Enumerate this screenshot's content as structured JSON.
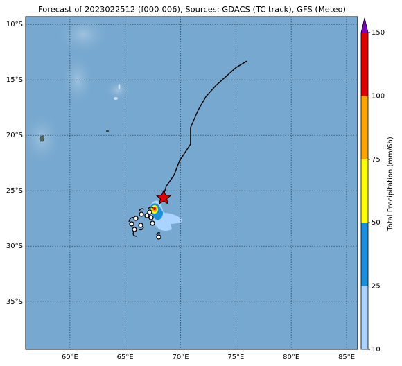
{
  "chart_data": {
    "type": "map",
    "title": "Forecast of 2023022512 (f000-006), Sources: GDACS (TC track), GFS (Meteo)",
    "xlim": [
      56,
      86
    ],
    "ylim": [
      -39.3,
      -9.3
    ],
    "xticks": [
      {
        "value": 60,
        "label": "60°E"
      },
      {
        "value": 65,
        "label": "65°E"
      },
      {
        "value": 70,
        "label": "70°E"
      },
      {
        "value": 75,
        "label": "75°E"
      },
      {
        "value": 80,
        "label": "80°E"
      },
      {
        "value": 85,
        "label": "85°E"
      }
    ],
    "yticks": [
      {
        "value": -10,
        "label": "10°S"
      },
      {
        "value": -15,
        "label": "15°S"
      },
      {
        "value": -20,
        "label": "20°S"
      },
      {
        "value": -25,
        "label": "25°S"
      },
      {
        "value": -30,
        "label": "30°S"
      },
      {
        "value": -35,
        "label": "35°S"
      }
    ],
    "grid": true,
    "track": {
      "color": "#000000",
      "x": [
        76.0,
        75.0,
        73.2,
        72.3,
        71.6,
        70.9,
        70.9,
        69.9,
        69.4,
        68.7,
        68.4
      ],
      "y": [
        -13.3,
        -13.9,
        -15.5,
        -16.5,
        -17.7,
        -19.3,
        -20.8,
        -22.3,
        -23.6,
        -24.6,
        -25.6
      ]
    },
    "colorbar": {
      "label": "Total Precipitation (mm/6h)",
      "ticks": [
        10,
        25,
        50,
        75,
        100,
        150
      ],
      "colors": [
        "#aad4ff",
        "#1a8fdd",
        "#ffff00",
        "#ffa500",
        "#e00000"
      ],
      "over_color": "#7a00c8"
    }
  }
}
